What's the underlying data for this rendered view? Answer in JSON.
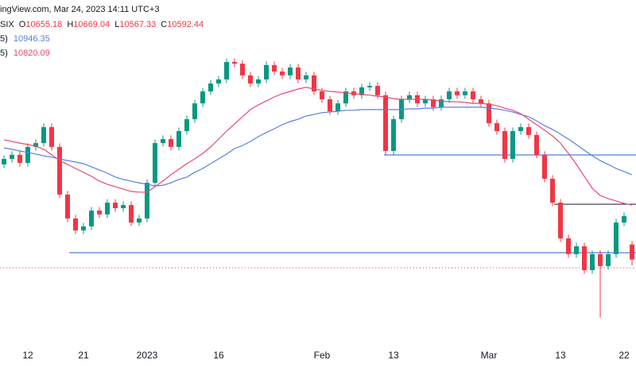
{
  "header": {
    "source": "ingView.com, Mar 24, 2023 14:11 UTC+3",
    "symbol": "SIX",
    "ohlc_labels": [
      "O",
      "H",
      "L",
      "C"
    ]
  },
  "chart_data": {
    "type": "candlestick",
    "ylim": [
      10249,
      11677
    ],
    "up_color": "#089981",
    "down_color": "#f23645",
    "categories": [
      null,
      null,
      null,
      "12",
      null,
      null,
      null,
      null,
      null,
      null,
      "21",
      null,
      null,
      null,
      null,
      null,
      null,
      null,
      "2023",
      null,
      null,
      null,
      null,
      null,
      null,
      null,
      null,
      "16",
      null,
      null,
      null,
      null,
      null,
      null,
      null,
      null,
      null,
      null,
      null,
      null,
      "Feb",
      null,
      null,
      null,
      null,
      null,
      null,
      null,
      null,
      "13",
      null,
      null,
      null,
      null,
      null,
      null,
      null,
      null,
      null,
      null,
      null,
      "Mar",
      null,
      null,
      null,
      null,
      null,
      null,
      null,
      null,
      "13",
      null,
      null,
      null,
      null,
      null,
      null,
      null,
      "22",
      null
    ],
    "open": [
      10990,
      11013,
      11030,
      10996,
      11063,
      11079,
      11146,
      11063,
      10864,
      10764,
      10714,
      10731,
      10797,
      10781,
      10830,
      10807,
      10820,
      10747,
      10764,
      10913,
      11079,
      11096,
      11063,
      11129,
      11179,
      11245,
      11295,
      11328,
      11345,
      11418,
      11411,
      11362,
      11328,
      11345,
      11405,
      11378,
      11362,
      11395,
      11345,
      11362,
      11295,
      11262,
      11212,
      11245,
      11295,
      11279,
      11312,
      11318,
      11279,
      11046,
      11179,
      11262,
      11279,
      11245,
      11262,
      11229,
      11262,
      11295,
      11279,
      11295,
      11262,
      11245,
      11162,
      11129,
      11013,
      11129,
      11146,
      11113,
      11030,
      10930,
      10830,
      10681,
      10615,
      10648,
      10548,
      10615,
      10565,
      10615,
      10747,
      10655.18
    ],
    "high": [
      11028,
      11045,
      11045,
      11078,
      11094,
      11161,
      11161,
      11078,
      10879,
      10779,
      10746,
      10812,
      10812,
      10845,
      10845,
      10835,
      10835,
      10779,
      10928,
      11094,
      11111,
      11111,
      11144,
      11194,
      11260,
      11310,
      11343,
      11360,
      11433,
      11433,
      11426,
      11377,
      11360,
      11420,
      11420,
      11393,
      11410,
      11410,
      11377,
      11377,
      11310,
      11277,
      11260,
      11310,
      11310,
      11327,
      11333,
      11333,
      11294,
      11194,
      11277,
      11294,
      11294,
      11277,
      11277,
      11277,
      11310,
      11310,
      11310,
      11310,
      11277,
      11260,
      11177,
      11144,
      11144,
      11161,
      11161,
      11128,
      11045,
      10945,
      10845,
      10696,
      10663,
      10663,
      10630,
      10630,
      10630,
      10762,
      10789,
      10669.04
    ],
    "low": [
      10975,
      10998,
      10981,
      10981,
      11048,
      11064,
      11048,
      10849,
      10749,
      10699,
      10699,
      10716,
      10766,
      10766,
      10792,
      10792,
      10732,
      10732,
      10749,
      10898,
      11064,
      11048,
      11048,
      11114,
      11164,
      11230,
      11280,
      11313,
      11330,
      11396,
      11347,
      11313,
      11313,
      11330,
      11363,
      11347,
      11347,
      11330,
      11330,
      11280,
      11247,
      11197,
      11197,
      11230,
      11264,
      11264,
      11297,
      11264,
      11031,
      11031,
      11164,
      11247,
      11230,
      11230,
      11214,
      11214,
      11247,
      11264,
      11264,
      11247,
      11230,
      11147,
      11114,
      10998,
      10998,
      11114,
      11098,
      11015,
      10915,
      10815,
      10666,
      10600,
      10600,
      10533,
      10533,
      10350,
      10550,
      10600,
      10732,
      10567.33
    ],
    "close": [
      11013,
      11030,
      10996,
      11063,
      11079,
      11146,
      11063,
      10864,
      10764,
      10714,
      10731,
      10797,
      10781,
      10830,
      10807,
      10820,
      10747,
      10764,
      10913,
      11079,
      11096,
      11063,
      11129,
      11179,
      11245,
      11295,
      11328,
      11345,
      11418,
      11411,
      11362,
      11328,
      11345,
      11405,
      11378,
      11362,
      11395,
      11345,
      11362,
      11295,
      11262,
      11212,
      11245,
      11295,
      11279,
      11312,
      11318,
      11279,
      11046,
      11179,
      11262,
      11279,
      11245,
      11262,
      11229,
      11262,
      11295,
      11279,
      11295,
      11262,
      11245,
      11162,
      11129,
      11013,
      11129,
      11146,
      11113,
      11030,
      10930,
      10830,
      10681,
      10615,
      10648,
      10548,
      10615,
      10565,
      10615,
      10747,
      10774,
      10592.44
    ],
    "series": [
      {
        "name": "5)",
        "color": "#5b7fe0",
        "values": [
          11059,
          11053,
          11046,
          11040,
          11033,
          11026,
          11020,
          11013,
          11006,
          11000,
          10993,
          10980,
          10967,
          10953,
          10937,
          10927,
          10920,
          10913,
          10907,
          10900,
          10903,
          10913,
          10927,
          10937,
          10957,
          10973,
          10993,
          11013,
          11033,
          11056,
          11069,
          11086,
          11106,
          11123,
          11139,
          11156,
          11169,
          11179,
          11192,
          11199,
          11206,
          11209,
          11212,
          11216,
          11216,
          11219,
          11219,
          11219,
          11219,
          11219,
          11219,
          11222,
          11222,
          11225,
          11225,
          11229,
          11229,
          11229,
          11229,
          11229,
          11229,
          11225,
          11222,
          11216,
          11209,
          11199,
          11189,
          11172,
          11152,
          11136,
          11116,
          11096,
          11073,
          11049,
          11026,
          11006,
          10990,
          10973,
          10960,
          10946.35
        ]
      },
      {
        "name": "5)",
        "color": "#e84a6f",
        "values": [
          11093,
          11086,
          11079,
          11073,
          11066,
          11053,
          11030,
          11006,
          10990,
          10973,
          10957,
          10940,
          10920,
          10907,
          10897,
          10887,
          10877,
          10874,
          10874,
          10897,
          10920,
          10947,
          10970,
          10993,
          11013,
          11036,
          11063,
          11096,
          11129,
          11159,
          11189,
          11219,
          11239,
          11255,
          11272,
          11285,
          11295,
          11305,
          11312,
          11305,
          11299,
          11295,
          11292,
          11289,
          11285,
          11282,
          11279,
          11275,
          11272,
          11265,
          11262,
          11262,
          11262,
          11262,
          11259,
          11255,
          11252,
          11252,
          11249,
          11245,
          11245,
          11242,
          11235,
          11225,
          11216,
          11202,
          11179,
          11156,
          11133,
          11109,
          11079,
          11036,
          10990,
          10940,
          10890,
          10860,
          10847,
          10837,
          10827,
          10820.09
        ]
      }
    ]
  }
}
